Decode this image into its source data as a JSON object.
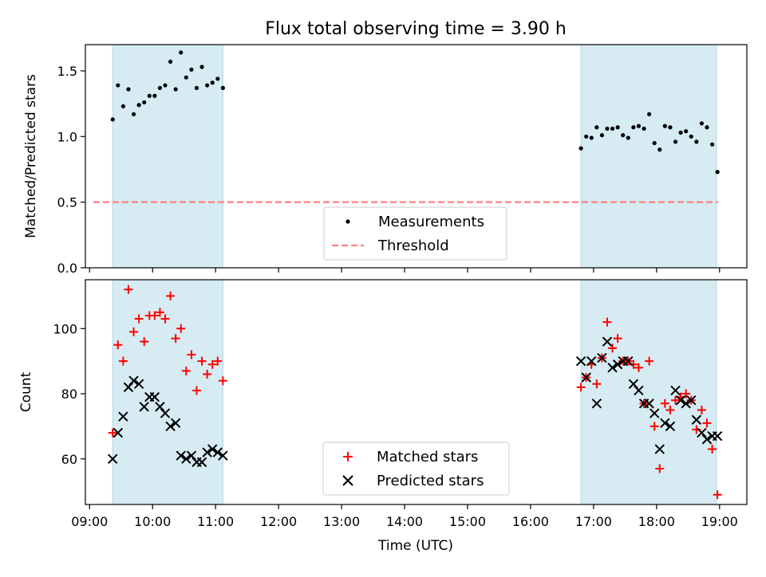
{
  "chart_data": [
    {
      "type": "scatter",
      "title": "Flux total observing time = 3.90 h",
      "xlabel": "",
      "ylabel": "Matched/Predicted stars",
      "ylim": [
        0,
        1.7
      ],
      "yticks": [
        "0.0",
        "0.5",
        "1.0",
        "1.5"
      ],
      "shaded_intervals": [
        [
          "09:22",
          "11:07"
        ],
        [
          "16:48",
          "18:57"
        ]
      ],
      "threshold": 0.5,
      "legend": {
        "placement": "lower-center",
        "entries": [
          "Measurements",
          "Threshold"
        ]
      },
      "series": [
        {
          "name": "Measurements",
          "x": [
            "09:22",
            "09:27",
            "09:32",
            "09:37",
            "09:42",
            "09:47",
            "09:52",
            "09:57",
            "10:02",
            "10:07",
            "10:12",
            "10:17",
            "10:22",
            "10:27",
            "10:32",
            "10:37",
            "10:42",
            "10:47",
            "10:52",
            "10:57",
            "11:02",
            "11:07",
            "16:48",
            "16:53",
            "16:58",
            "17:03",
            "17:08",
            "17:13",
            "17:18",
            "17:23",
            "17:28",
            "17:33",
            "17:38",
            "17:43",
            "17:48",
            "17:53",
            "17:58",
            "18:03",
            "18:08",
            "18:13",
            "18:18",
            "18:23",
            "18:28",
            "18:33",
            "18:38",
            "18:43",
            "18:48",
            "18:53",
            "18:58"
          ],
          "y": [
            1.13,
            1.39,
            1.23,
            1.36,
            1.17,
            1.24,
            1.26,
            1.31,
            1.31,
            1.37,
            1.39,
            1.57,
            1.36,
            1.64,
            1.45,
            1.51,
            1.37,
            1.53,
            1.39,
            1.41,
            1.44,
            1.37,
            0.91,
            1.0,
            0.99,
            1.07,
            1.01,
            1.06,
            1.06,
            1.07,
            1.01,
            0.99,
            1.07,
            1.08,
            1.06,
            1.17,
            0.95,
            0.9,
            1.08,
            1.07,
            0.96,
            1.03,
            1.04,
            1.0,
            0.96,
            1.1,
            1.07,
            0.94,
            0.73
          ]
        },
        {
          "name": "Threshold",
          "y": 0.5
        }
      ]
    },
    {
      "type": "scatter",
      "title": "",
      "xlabel": "Time (UTC)",
      "ylabel": "Count",
      "ylim": [
        46,
        115
      ],
      "yticks": [
        "60",
        "80",
        "100"
      ],
      "xlim": [
        "08:56",
        "19:26"
      ],
      "xticks": [
        "09:00",
        "10:00",
        "11:00",
        "12:00",
        "13:00",
        "14:00",
        "15:00",
        "16:00",
        "17:00",
        "18:00",
        "19:00"
      ],
      "shaded_intervals": [
        [
          "09:22",
          "11:07"
        ],
        [
          "16:48",
          "18:57"
        ]
      ],
      "legend": {
        "placement": "lower-center",
        "entries": [
          "Matched stars",
          "Predicted stars"
        ]
      },
      "series": [
        {
          "name": "Matched stars",
          "x": [
            "09:22",
            "09:27",
            "09:32",
            "09:37",
            "09:42",
            "09:47",
            "09:52",
            "09:57",
            "10:02",
            "10:07",
            "10:12",
            "10:17",
            "10:22",
            "10:27",
            "10:32",
            "10:37",
            "10:42",
            "10:47",
            "10:52",
            "10:57",
            "11:02",
            "11:07",
            "16:48",
            "16:53",
            "16:58",
            "17:03",
            "17:08",
            "17:13",
            "17:18",
            "17:23",
            "17:28",
            "17:33",
            "17:38",
            "17:43",
            "17:48",
            "17:53",
            "17:58",
            "18:03",
            "18:08",
            "18:13",
            "18:18",
            "18:23",
            "18:28",
            "18:33",
            "18:38",
            "18:43",
            "18:48",
            "18:53",
            "18:58"
          ],
          "y": [
            68,
            95,
            90,
            112,
            99,
            103,
            96,
            104,
            104,
            105,
            103,
            110,
            97,
            100,
            87,
            92,
            81,
            90,
            86,
            89,
            90,
            84,
            82,
            85,
            89,
            83,
            91,
            102,
            94,
            97,
            90,
            90,
            89,
            88,
            77,
            90,
            70,
            57,
            77,
            75,
            78,
            79,
            80,
            78,
            69,
            75,
            71,
            63,
            49
          ]
        },
        {
          "name": "Predicted stars",
          "x": [
            "09:22",
            "09:27",
            "09:32",
            "09:37",
            "09:42",
            "09:47",
            "09:52",
            "09:57",
            "10:02",
            "10:07",
            "10:12",
            "10:17",
            "10:22",
            "10:27",
            "10:32",
            "10:37",
            "10:42",
            "10:47",
            "10:52",
            "10:57",
            "11:02",
            "11:07",
            "16:48",
            "16:53",
            "16:58",
            "17:03",
            "17:08",
            "17:13",
            "17:18",
            "17:23",
            "17:28",
            "17:33",
            "17:38",
            "17:43",
            "17:48",
            "17:53",
            "17:58",
            "18:03",
            "18:08",
            "18:13",
            "18:18",
            "18:23",
            "18:28",
            "18:33",
            "18:38",
            "18:43",
            "18:48",
            "18:53",
            "18:58"
          ],
          "y": [
            60,
            68,
            73,
            82,
            84,
            83,
            76,
            79,
            79,
            76,
            74,
            70,
            71,
            61,
            60,
            61,
            59,
            59,
            62,
            63,
            62,
            61,
            90,
            85,
            90,
            77,
            91,
            96,
            88,
            89,
            90,
            90,
            83,
            81,
            77,
            77,
            74,
            63,
            71,
            70,
            81,
            78,
            77,
            78,
            72,
            68,
            66,
            67,
            67
          ]
        }
      ]
    }
  ],
  "colors": {
    "shade": "#add8e6",
    "measurement": "#000000",
    "threshold": "#ff7f7f",
    "matched": "#ff0000",
    "predicted": "#000000"
  }
}
